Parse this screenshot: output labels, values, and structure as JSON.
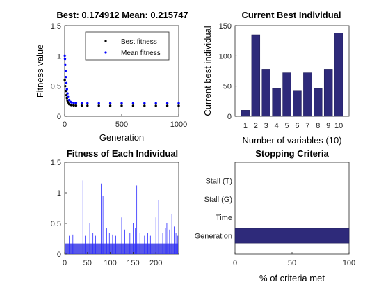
{
  "colors": {
    "axis": "#262626",
    "bar": "#2e2a7a",
    "black_series": "#000000",
    "blue_series": "#0000ff"
  },
  "chart_data": [
    {
      "id": "fitness",
      "type": "scatter",
      "title": "Best: 0.174912 Mean: 0.215747",
      "xlabel": "Generation",
      "ylabel": "Fitness value",
      "xlim": [
        0,
        1000
      ],
      "ylim": [
        0,
        1.5
      ],
      "xticks": [
        0,
        500,
        1000
      ],
      "yticks": [
        0,
        0.5,
        1,
        1.5
      ],
      "legend": {
        "placement": "top-right",
        "entries": [
          "Best fitness",
          "Mean fitness"
        ]
      },
      "series": [
        {
          "name": "Best fitness",
          "color": "#000000",
          "x": [
            1,
            5,
            10,
            15,
            20,
            25,
            30,
            40,
            50,
            60,
            80,
            100,
            150,
            200,
            300,
            400,
            500,
            600,
            700,
            800,
            900,
            1000
          ],
          "y": [
            0.6,
            0.5,
            0.42,
            0.35,
            0.3,
            0.26,
            0.23,
            0.2,
            0.19,
            0.185,
            0.18,
            0.178,
            0.177,
            0.176,
            0.176,
            0.175,
            0.175,
            0.175,
            0.175,
            0.175,
            0.175,
            0.175
          ]
        },
        {
          "name": "Mean fitness",
          "color": "#0000ff",
          "x": [
            1,
            3,
            5,
            8,
            10,
            15,
            20,
            25,
            30,
            40,
            50,
            60,
            80,
            100,
            150,
            200,
            300,
            400,
            500,
            600,
            700,
            800,
            900,
            1000
          ],
          "y": [
            1.0,
            0.95,
            0.85,
            0.75,
            0.65,
            0.55,
            0.45,
            0.38,
            0.32,
            0.27,
            0.24,
            0.23,
            0.22,
            0.22,
            0.215,
            0.215,
            0.215,
            0.215,
            0.215,
            0.215,
            0.215,
            0.215,
            0.215,
            0.215
          ]
        }
      ]
    },
    {
      "id": "best-individual",
      "type": "bar",
      "title": "Current Best Individual",
      "xlabel": "Number of variables (10)",
      "ylabel": "Current best individual",
      "ylim": [
        0,
        150
      ],
      "yticks": [
        0,
        50,
        100,
        150
      ],
      "categories": [
        "1",
        "2",
        "3",
        "4",
        "5",
        "6",
        "7",
        "8",
        "9",
        "10"
      ],
      "values": [
        10,
        135,
        78,
        46,
        72,
        43,
        72,
        46,
        78,
        138
      ]
    },
    {
      "id": "each-individual",
      "type": "bar",
      "title": "Fitness of Each Individual",
      "xlim": [
        0,
        250
      ],
      "ylim": [
        0,
        1.5
      ],
      "xticks": [
        0,
        50,
        100,
        150,
        200
      ],
      "yticks": [
        0,
        0.5,
        1,
        1.5
      ],
      "baseline_value": 0.175,
      "spikes": [
        {
          "x": 10,
          "y": 0.3
        },
        {
          "x": 18,
          "y": 0.32
        },
        {
          "x": 25,
          "y": 0.45
        },
        {
          "x": 40,
          "y": 1.2
        },
        {
          "x": 45,
          "y": 0.3
        },
        {
          "x": 55,
          "y": 0.5
        },
        {
          "x": 62,
          "y": 0.35
        },
        {
          "x": 68,
          "y": 0.3
        },
        {
          "x": 80,
          "y": 1.15
        },
        {
          "x": 84,
          "y": 0.95
        },
        {
          "x": 92,
          "y": 0.42
        },
        {
          "x": 98,
          "y": 0.35
        },
        {
          "x": 105,
          "y": 0.32
        },
        {
          "x": 112,
          "y": 0.3
        },
        {
          "x": 125,
          "y": 0.6
        },
        {
          "x": 132,
          "y": 0.4
        },
        {
          "x": 143,
          "y": 0.35
        },
        {
          "x": 150,
          "y": 0.5
        },
        {
          "x": 155,
          "y": 0.42
        },
        {
          "x": 158,
          "y": 1.12
        },
        {
          "x": 165,
          "y": 0.35
        },
        {
          "x": 175,
          "y": 0.3
        },
        {
          "x": 182,
          "y": 0.35
        },
        {
          "x": 188,
          "y": 0.3
        },
        {
          "x": 200,
          "y": 0.6
        },
        {
          "x": 206,
          "y": 0.88
        },
        {
          "x": 215,
          "y": 0.35
        },
        {
          "x": 221,
          "y": 0.42
        },
        {
          "x": 224,
          "y": 0.5
        },
        {
          "x": 230,
          "y": 0.4
        },
        {
          "x": 235,
          "y": 0.65
        },
        {
          "x": 240,
          "y": 0.45
        },
        {
          "x": 244,
          "y": 0.35
        },
        {
          "x": 248,
          "y": 0.3
        }
      ]
    },
    {
      "id": "stopping",
      "type": "bar",
      "orientation": "horizontal",
      "title": "Stopping Criteria",
      "xlabel": "% of criteria met",
      "xlim": [
        0,
        100
      ],
      "xticks": [
        0,
        50,
        100
      ],
      "categories": [
        "Generation",
        "Time",
        "Stall (G)",
        "Stall (T)"
      ],
      "values": [
        100,
        0,
        0,
        0
      ]
    }
  ]
}
